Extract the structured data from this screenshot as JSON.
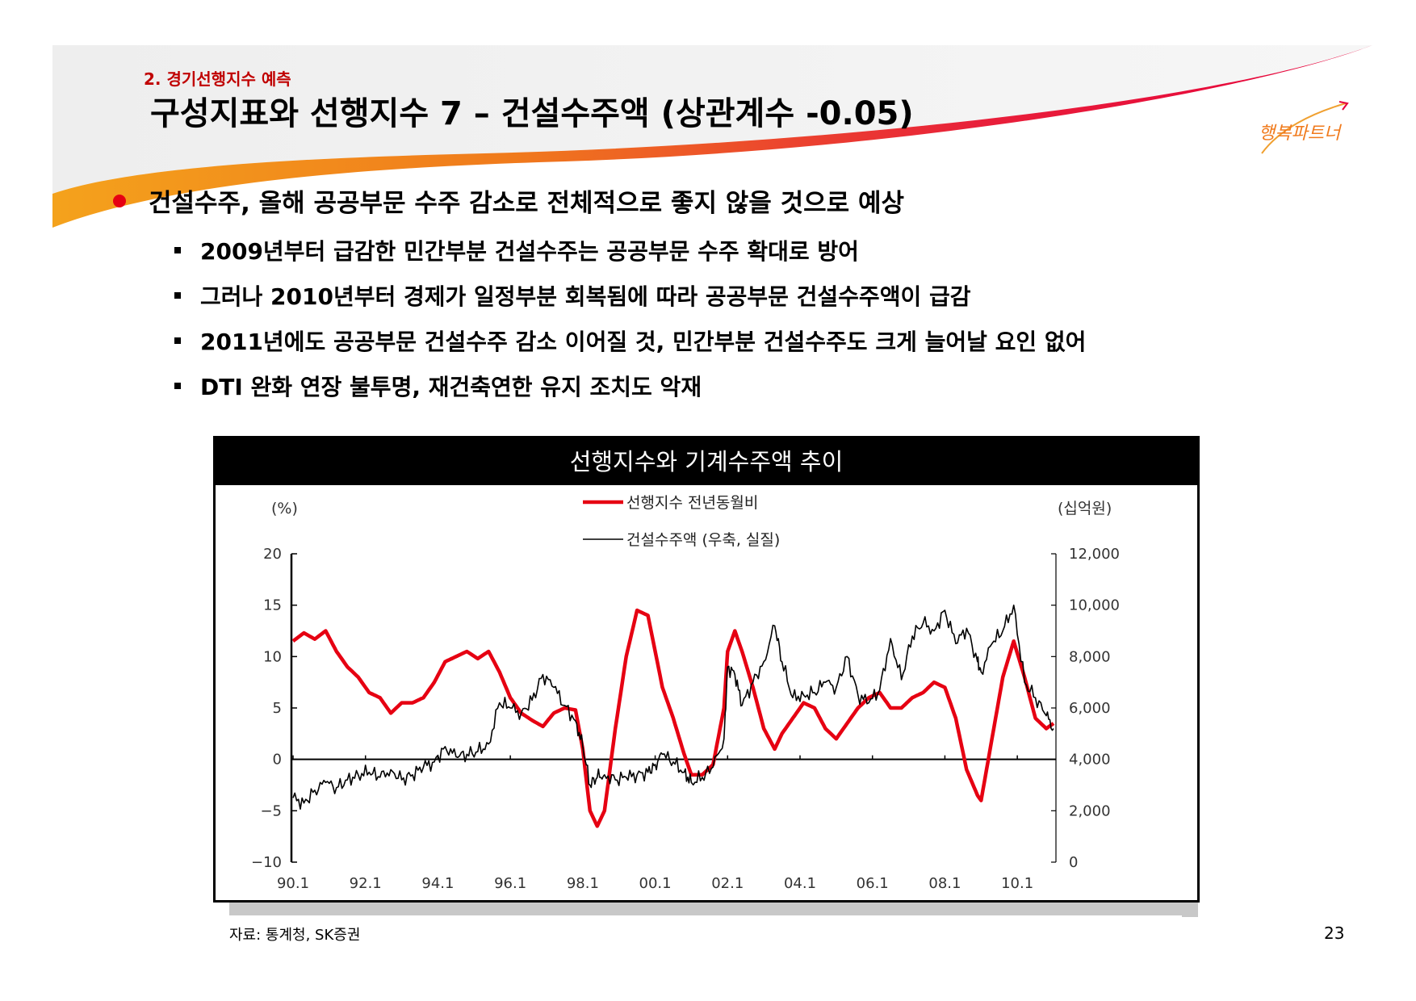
{
  "section_label": "2. 경기선행지수 예측",
  "title": "구성지표와 선행지수 7 – 건설수주액 (상관계수 -0.05)",
  "main_bullet": "건설수주, 올해 공공부문 수주 감소로 전체적으로 좋지 않을 것으로 예상",
  "sub_bullets": [
    "2009년부터 급감한 민간부분 건설수주는 공공부문 수주 확대로 방어",
    "그러나 2010년부터 경제가 일정부분 회복됨에 따라 공공부문 건설수주액이 급감",
    "2011년에도 공공부문 건설수주 감소 이어질 것, 민간부분 건설수주도 크게 늘어날 요인 없어",
    "DTI 완화 연장 불투명, 재건축연한 유지 조치도 악재"
  ],
  "logo_text": "행복파트너",
  "source": "자료: 통계청, SK증권",
  "page_number": "23",
  "colors": {
    "accent_red": "#e60012",
    "banner_orange": "#f5a623",
    "banner_gray": "#ececec"
  },
  "chart_data": {
    "type": "line",
    "title": "선행지수와 기계수주액 추이",
    "y_left_unit": "(%)",
    "y_right_unit": "(십억원)",
    "x_ticks": [
      "90.1",
      "92.1",
      "94.1",
      "96.1",
      "98.1",
      "00.1",
      "02.1",
      "04.1",
      "06.1",
      "08.1",
      "10.1"
    ],
    "y_left_ticks": [
      "20",
      "15",
      "10",
      "5",
      "0",
      "−5",
      "−10"
    ],
    "y_left_range": [
      -10,
      20
    ],
    "y_right_ticks": [
      "12,000",
      "10,000",
      "8,000",
      "6,000",
      "4,000",
      "2,000",
      "0"
    ],
    "y_right_range": [
      0,
      12000
    ],
    "x_range": [
      1990.0,
      2011.0
    ],
    "legend_position": "top-center",
    "series": [
      {
        "name": "선행지수 전년동월비",
        "axis": "left",
        "color": "#e60012",
        "x": [
          1990.0,
          1990.3,
          1990.6,
          1990.9,
          1991.2,
          1991.5,
          1991.8,
          1992.1,
          1992.4,
          1992.7,
          1993.0,
          1993.3,
          1993.6,
          1993.9,
          1994.2,
          1994.5,
          1994.8,
          1995.1,
          1995.4,
          1995.7,
          1996.0,
          1996.3,
          1996.6,
          1996.9,
          1997.2,
          1997.5,
          1997.8,
          1998.0,
          1998.2,
          1998.4,
          1998.6,
          1998.9,
          1999.2,
          1999.5,
          1999.8,
          2000.0,
          2000.2,
          2000.5,
          2000.8,
          2001.0,
          2001.3,
          2001.6,
          2001.9,
          2002.0,
          2002.2,
          2002.4,
          2002.7,
          2003.0,
          2003.3,
          2003.5,
          2003.8,
          2004.1,
          2004.4,
          2004.7,
          2005.0,
          2005.3,
          2005.6,
          2005.9,
          2006.2,
          2006.5,
          2006.8,
          2007.1,
          2007.4,
          2007.7,
          2008.0,
          2008.3,
          2008.6,
          2008.9,
          2009.0,
          2009.3,
          2009.6,
          2009.9,
          2010.2,
          2010.5,
          2010.8,
          2011.0
        ],
        "values": [
          11.5,
          12.3,
          11.7,
          12.5,
          10.5,
          9.0,
          8.0,
          6.5,
          6.0,
          4.5,
          5.5,
          5.5,
          6.0,
          7.5,
          9.5,
          10.0,
          10.5,
          9.8,
          10.5,
          8.5,
          6.0,
          4.5,
          3.8,
          3.2,
          4.5,
          5.0,
          4.8,
          1.0,
          -5.0,
          -6.5,
          -5.0,
          3.0,
          10.0,
          14.5,
          14.0,
          10.5,
          7.0,
          4.0,
          0.5,
          -1.5,
          -1.5,
          -0.5,
          5.0,
          10.5,
          12.5,
          10.5,
          7.0,
          3.0,
          1.0,
          2.5,
          4.0,
          5.5,
          5.0,
          3.0,
          2.0,
          3.5,
          5.0,
          6.0,
          6.5,
          5.0,
          5.0,
          6.0,
          6.5,
          7.5,
          7.0,
          4.0,
          -1.0,
          -3.5,
          -4.0,
          2.0,
          8.0,
          11.5,
          8.0,
          4.0,
          3.0,
          3.5
        ]
      },
      {
        "name": "건설수주액 (우축, 실질)",
        "axis": "right",
        "color": "#000000",
        "x": [
          1990.0,
          1990.3,
          1990.6,
          1990.9,
          1991.2,
          1991.5,
          1991.8,
          1992.1,
          1992.4,
          1992.7,
          1993.0,
          1993.3,
          1993.6,
          1993.9,
          1994.2,
          1994.5,
          1994.8,
          1995.1,
          1995.4,
          1995.7,
          1996.0,
          1996.3,
          1996.6,
          1996.9,
          1997.2,
          1997.5,
          1997.8,
          1998.0,
          1998.2,
          1998.4,
          1998.6,
          1998.9,
          1999.2,
          1999.5,
          1999.8,
          2000.0,
          2000.2,
          2000.5,
          2000.8,
          2001.0,
          2001.3,
          2001.6,
          2001.9,
          2002.0,
          2002.2,
          2002.4,
          2002.7,
          2003.0,
          2003.3,
          2003.5,
          2003.8,
          2004.1,
          2004.4,
          2004.7,
          2005.0,
          2005.3,
          2005.6,
          2005.9,
          2006.2,
          2006.5,
          2006.8,
          2007.1,
          2007.4,
          2007.7,
          2008.0,
          2008.3,
          2008.6,
          2008.9,
          2009.0,
          2009.3,
          2009.6,
          2009.9,
          2010.2,
          2010.5,
          2010.8,
          2011.0
        ],
        "values": [
          2500,
          2300,
          2800,
          3100,
          2900,
          3200,
          3400,
          3500,
          3300,
          3600,
          3200,
          3400,
          3700,
          3900,
          4500,
          4100,
          4200,
          4300,
          4600,
          6200,
          6000,
          5800,
          6300,
          7300,
          6800,
          6100,
          5500,
          4500,
          3000,
          3300,
          3400,
          3200,
          3300,
          3400,
          3500,
          3800,
          4200,
          3900,
          3500,
          3100,
          3300,
          3700,
          4800,
          7600,
          7300,
          6100,
          7000,
          7800,
          9200,
          7800,
          6400,
          6500,
          6600,
          7000,
          6800,
          8000,
          6500,
          6200,
          6700,
          8700,
          7100,
          8800,
          9300,
          9000,
          9800,
          8500,
          9100,
          7800,
          7400,
          8500,
          9000,
          10000,
          7000,
          6400,
          5700,
          5200
        ]
      }
    ]
  }
}
